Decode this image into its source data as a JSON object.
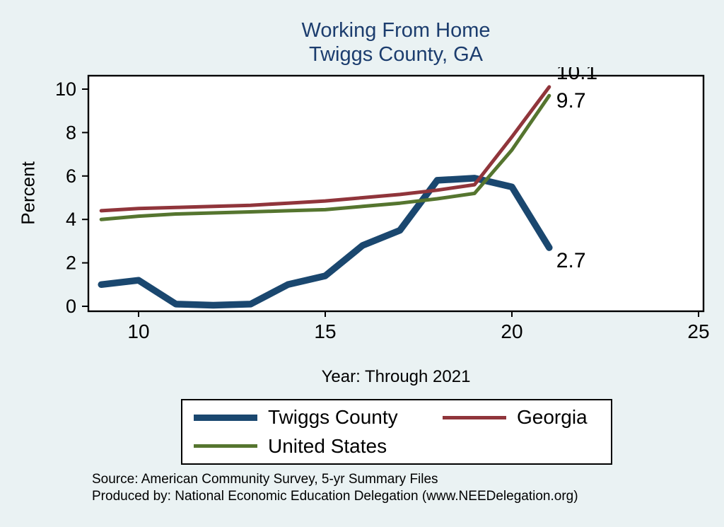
{
  "colors": {
    "page-bg": "#eaf2f3",
    "plot-bg": "#ffffff",
    "frame": "#000000",
    "title": "#1c3d6e",
    "text": "#000000"
  },
  "title": {
    "line1": "Working From Home",
    "line2": "Twiggs County, GA"
  },
  "chart_data": {
    "type": "line",
    "x": [
      2009,
      2010,
      2011,
      2012,
      2013,
      2014,
      2015,
      2016,
      2017,
      2018,
      2019,
      2020,
      2021
    ],
    "series": [
      {
        "name": "Twiggs County",
        "color": "#1a476f",
        "line_width": 9.5,
        "end_label": "2.7",
        "values": [
          1.0,
          1.2,
          0.1,
          0.05,
          0.1,
          1.0,
          1.4,
          2.8,
          3.5,
          5.8,
          5.9,
          5.5,
          2.7
        ]
      },
      {
        "name": "Georgia",
        "color": "#90353b",
        "line_width": 5,
        "end_label": "10.1",
        "values": [
          4.4,
          4.5,
          4.55,
          4.6,
          4.65,
          4.75,
          4.85,
          5.0,
          5.15,
          5.35,
          5.6,
          7.8,
          10.1
        ]
      },
      {
        "name": "United States",
        "color": "#55752f",
        "line_width": 5,
        "end_label": "9.7",
        "values": [
          4.0,
          4.15,
          4.25,
          4.3,
          4.35,
          4.4,
          4.45,
          4.6,
          4.75,
          4.95,
          5.2,
          7.2,
          9.7
        ]
      }
    ],
    "ylabel": "Percent",
    "xlabel": "Year: Through 2021",
    "yticks": [
      0,
      2,
      4,
      6,
      8,
      10
    ],
    "xticks": [
      {
        "label": "10",
        "year": 2010
      },
      {
        "label": "15",
        "year": 2015
      },
      {
        "label": "20",
        "year": 2020
      },
      {
        "label": "25",
        "year": 2025
      }
    ],
    "ylim": [
      0,
      10.8
    ],
    "xlim": [
      2008.6,
      2025.4
    ],
    "grid": false,
    "legend_position": "bottom"
  },
  "footer": {
    "source": "Source: American Community Survey, 5-yr Summary Files",
    "produced": "Produced by: National Economic Education Delegation (www.NEEDelegation.org)"
  }
}
